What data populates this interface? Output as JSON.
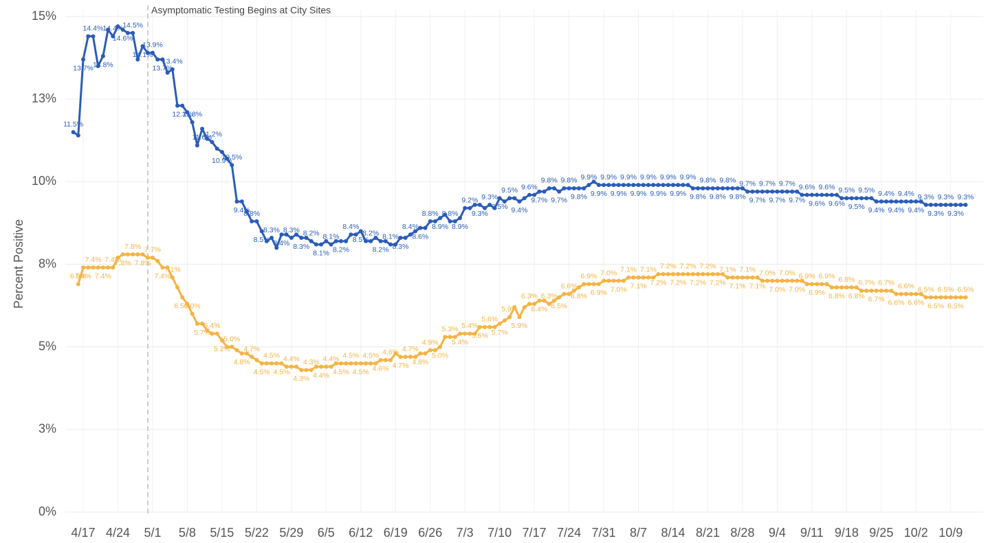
{
  "chart_data": {
    "type": "line",
    "annotation": "Asymptomatic Testing Begins at City Sites",
    "ylabel": "Percent Positive",
    "ylim": [
      0,
      15
    ],
    "yticks": [
      {
        "value": 0,
        "label": "0%"
      },
      {
        "value": 2.5,
        "label": "3%"
      },
      {
        "value": 5,
        "label": "5%"
      },
      {
        "value": 7.5,
        "label": "8%"
      },
      {
        "value": 10,
        "label": "10%"
      },
      {
        "value": 12.5,
        "label": "13%"
      },
      {
        "value": 15,
        "label": "15%"
      }
    ],
    "grid": true,
    "categories": [
      null,
      null,
      "4/17",
      null,
      null,
      null,
      null,
      null,
      null,
      "4/24",
      null,
      null,
      null,
      null,
      null,
      null,
      "5/1",
      null,
      null,
      null,
      null,
      null,
      null,
      "5/8",
      null,
      null,
      null,
      null,
      null,
      null,
      "5/15",
      null,
      null,
      null,
      null,
      null,
      null,
      "5/22",
      null,
      null,
      null,
      null,
      null,
      null,
      "5/29",
      null,
      null,
      null,
      null,
      null,
      null,
      "6/5",
      null,
      null,
      null,
      null,
      null,
      null,
      "6/12",
      null,
      null,
      null,
      null,
      null,
      null,
      "6/19",
      null,
      null,
      null,
      null,
      null,
      null,
      "6/26",
      null,
      null,
      null,
      null,
      null,
      null,
      "7/3",
      null,
      null,
      null,
      null,
      null,
      null,
      "7/10",
      null,
      null,
      null,
      null,
      null,
      null,
      "7/17",
      null,
      null,
      null,
      null,
      null,
      null,
      "7/24",
      null,
      null,
      null,
      null,
      null,
      null,
      "7/31",
      null,
      null,
      null,
      null,
      null,
      null,
      "8/7",
      null,
      null,
      null,
      null,
      null,
      null,
      "8/14",
      null,
      null,
      null,
      null,
      null,
      null,
      "8/21",
      null,
      null,
      null,
      null,
      null,
      null,
      "8/28",
      null,
      null,
      null,
      null,
      null,
      null,
      "9/4",
      null,
      null,
      null,
      null,
      null,
      null,
      "9/11",
      null,
      null,
      null,
      null,
      null,
      null,
      "9/18",
      null,
      null,
      null,
      null,
      null,
      null,
      "9/25",
      null,
      null,
      null,
      null,
      null,
      null,
      "10/2",
      null,
      null,
      null,
      null,
      null,
      null,
      "10/9",
      null,
      null,
      null
    ],
    "series": [
      {
        "color": "#2a5cb8",
        "values": [
          11.5,
          11.4,
          13.7,
          14.4,
          14.4,
          13.5,
          13.8,
          14.6,
          14.4,
          14.7,
          14.6,
          14.5,
          14.5,
          13.7,
          14.1,
          13.9,
          13.9,
          13.7,
          13.7,
          13.3,
          13.4,
          12.3,
          12.3,
          12.1,
          11.8,
          11.1,
          11.6,
          11.3,
          11.2,
          11.0,
          10.9,
          10.7,
          10.5,
          9.4,
          9.4,
          9.1,
          8.8,
          8.8,
          8.5,
          8.2,
          8.3,
          8.0,
          8.4,
          8.4,
          8.3,
          8.4,
          8.3,
          8.3,
          8.2,
          8.1,
          8.1,
          8.2,
          8.1,
          8.2,
          8.2,
          8.2,
          8.4,
          8.4,
          8.5,
          8.2,
          8.2,
          8.3,
          8.2,
          8.2,
          8.1,
          8.1,
          8.3,
          8.3,
          8.4,
          8.5,
          8.6,
          8.6,
          8.8,
          8.8,
          8.9,
          9.0,
          8.8,
          8.8,
          8.9,
          9.2,
          9.2,
          9.3,
          9.3,
          9.2,
          9.3,
          9.2,
          9.5,
          9.4,
          9.5,
          9.5,
          9.4,
          9.5,
          9.6,
          9.6,
          9.7,
          9.7,
          9.8,
          9.8,
          9.7,
          9.8,
          9.8,
          9.8,
          9.8,
          9.8,
          9.9,
          10.0,
          9.9,
          9.9,
          9.9,
          9.9,
          9.9,
          9.9,
          9.9,
          9.9,
          9.9,
          9.9,
          9.9,
          9.9,
          9.9,
          9.9,
          9.9,
          9.9,
          9.9,
          9.9,
          9.9,
          9.8,
          9.8,
          9.8,
          9.8,
          9.8,
          9.8,
          9.8,
          9.8,
          9.8,
          9.8,
          9.8,
          9.7,
          9.7,
          9.7,
          9.7,
          9.7,
          9.7,
          9.7,
          9.7,
          9.7,
          9.7,
          9.7,
          9.6,
          9.6,
          9.6,
          9.6,
          9.6,
          9.6,
          9.6,
          9.6,
          9.5,
          9.5,
          9.5,
          9.5,
          9.5,
          9.5,
          9.5,
          9.4,
          9.4,
          9.4,
          9.4,
          9.4,
          9.4,
          9.4,
          9.4,
          9.4,
          9.4,
          9.3,
          9.3,
          9.3,
          9.3,
          9.3,
          9.3,
          9.3,
          9.3,
          9.3
        ],
        "value_labels": [
          "11.5%",
          null,
          "13.7%",
          null,
          "14.4%",
          null,
          "13.8%",
          null,
          "14.4%",
          null,
          "14.6%",
          null,
          "14.5%",
          null,
          "14.1%",
          null,
          "13.9%",
          null,
          "13.7%",
          null,
          "13.4%",
          null,
          "12.3%",
          null,
          "11.8%",
          null,
          "11.6%",
          null,
          "11.2%",
          null,
          "10.9%",
          null,
          "10.5%",
          null,
          "9.4%",
          null,
          "8.8%",
          null,
          "8.5%",
          null,
          "8.3%",
          null,
          "8.4%",
          null,
          "8.3%",
          null,
          "8.3%",
          null,
          "8.2%",
          null,
          "8.1%",
          null,
          "8.1%",
          null,
          "8.2%",
          null,
          "8.4%",
          null,
          "8.5%",
          null,
          "8.2%",
          null,
          "8.2%",
          null,
          "8.1%",
          null,
          "8.3%",
          null,
          "8.4%",
          null,
          "8.6%",
          null,
          "8.8%",
          null,
          "8.9%",
          null,
          "8.8%",
          null,
          "8.9%",
          null,
          "9.2%",
          null,
          "9.3%",
          null,
          "9.3%",
          null,
          "9.5%",
          null,
          "9.5%",
          null,
          "9.4%",
          null,
          "9.6%",
          null,
          "9.7%",
          null,
          "9.8%",
          null,
          "9.7%",
          null,
          "9.8%",
          null,
          "9.8%",
          null,
          "9.9%",
          null,
          "9.9%",
          null,
          "9.9%",
          null,
          "9.9%",
          null,
          "9.9%",
          null,
          "9.9%",
          null,
          "9.9%",
          null,
          "9.9%",
          null,
          "9.9%",
          null,
          "9.9%",
          null,
          "9.9%",
          null,
          "9.8%",
          null,
          "9.8%",
          null,
          "9.8%",
          null,
          "9.8%",
          null,
          "9.8%",
          null,
          "9.7%",
          null,
          "9.7%",
          null,
          "9.7%",
          null,
          "9.7%",
          null,
          "9.7%",
          null,
          "9.7%",
          null,
          "9.6%",
          null,
          "9.6%",
          null,
          "9.6%",
          null,
          "9.6%",
          null,
          "9.5%",
          null,
          "9.5%",
          null,
          "9.5%",
          null,
          "9.4%",
          null,
          "9.4%",
          null,
          "9.4%",
          null,
          "9.4%",
          null,
          "9.4%",
          null,
          "9.3%",
          null,
          "9.3%",
          null,
          "9.3%",
          null,
          "9.3%",
          null,
          "9.3%"
        ]
      },
      {
        "color": "#f5b342",
        "values": [
          null,
          6.9,
          7.4,
          7.4,
          7.4,
          7.4,
          7.4,
          7.4,
          7.4,
          7.7,
          7.8,
          7.8,
          7.8,
          7.8,
          7.8,
          7.7,
          7.7,
          7.6,
          7.4,
          7.4,
          7.1,
          6.8,
          6.5,
          6.3,
          6.0,
          5.7,
          5.7,
          5.5,
          5.4,
          5.4,
          5.2,
          5.0,
          5.0,
          4.9,
          4.8,
          4.8,
          4.7,
          4.6,
          4.5,
          4.5,
          4.5,
          4.5,
          4.5,
          4.4,
          4.4,
          4.4,
          4.3,
          4.3,
          4.3,
          4.4,
          4.4,
          4.4,
          4.4,
          4.5,
          4.5,
          4.5,
          4.5,
          4.5,
          4.5,
          4.5,
          4.5,
          4.5,
          4.6,
          4.6,
          4.6,
          4.8,
          4.7,
          4.7,
          4.7,
          4.7,
          4.8,
          4.8,
          4.9,
          4.9,
          5.0,
          5.3,
          5.3,
          5.3,
          5.4,
          5.4,
          5.4,
          5.4,
          5.6,
          5.6,
          5.6,
          5.6,
          5.7,
          5.8,
          5.9,
          6.2,
          5.9,
          6.2,
          6.3,
          6.3,
          6.4,
          6.4,
          6.3,
          6.4,
          6.5,
          6.6,
          6.6,
          6.7,
          6.8,
          6.9,
          6.9,
          6.9,
          6.9,
          7.0,
          7.0,
          7.0,
          7.0,
          7.0,
          7.1,
          7.1,
          7.1,
          7.1,
          7.1,
          7.1,
          7.2,
          7.2,
          7.2,
          7.2,
          7.2,
          7.2,
          7.2,
          7.2,
          7.2,
          7.2,
          7.2,
          7.2,
          7.2,
          7.2,
          7.1,
          7.1,
          7.1,
          7.1,
          7.1,
          7.1,
          7.1,
          7.0,
          7.0,
          7.0,
          7.0,
          7.0,
          7.0,
          7.0,
          7.0,
          7.0,
          6.9,
          6.9,
          6.9,
          6.9,
          6.9,
          6.8,
          6.8,
          6.8,
          6.8,
          6.8,
          6.8,
          6.7,
          6.7,
          6.7,
          6.7,
          6.7,
          6.7,
          6.7,
          6.6,
          6.6,
          6.6,
          6.6,
          6.6,
          6.6,
          6.5,
          6.5,
          6.5,
          6.5,
          6.5,
          6.5,
          6.5,
          6.5,
          6.5
        ],
        "value_labels": [
          null,
          "6.9%",
          "7.4%",
          null,
          "7.4%",
          null,
          "7.4%",
          null,
          "7.4%",
          null,
          "7.8%",
          null,
          "7.8%",
          null,
          "7.8%",
          null,
          "7.7%",
          null,
          "7.4%",
          null,
          "7.1%",
          null,
          "6.5%",
          null,
          "6.0%",
          null,
          "5.7%",
          null,
          "5.4%",
          null,
          "5.2%",
          null,
          "5.0%",
          null,
          "4.8%",
          null,
          "4.7%",
          null,
          "4.5%",
          null,
          "4.5%",
          null,
          "4.5%",
          null,
          "4.4%",
          null,
          "4.3%",
          null,
          "4.3%",
          null,
          "4.4%",
          null,
          "4.4%",
          null,
          "4.5%",
          null,
          "4.5%",
          null,
          "4.5%",
          null,
          "4.5%",
          null,
          "4.6%",
          null,
          "4.6%",
          null,
          "4.7%",
          null,
          "4.7%",
          null,
          "4.8%",
          null,
          "4.9%",
          null,
          "5.0%",
          null,
          "5.3%",
          null,
          "5.4%",
          null,
          "5.4%",
          null,
          "5.6%",
          null,
          "5.6%",
          null,
          "5.7%",
          null,
          "5.9%",
          null,
          "5.9%",
          null,
          "6.3%",
          null,
          "6.4%",
          null,
          "6.3%",
          null,
          "6.5%",
          null,
          "6.6%",
          null,
          "6.8%",
          null,
          "6.9%",
          null,
          "6.9%",
          null,
          "7.0%",
          null,
          "7.0%",
          null,
          "7.1%",
          null,
          "7.1%",
          null,
          "7.1%",
          null,
          "7.2%",
          null,
          "7.2%",
          null,
          "7.2%",
          null,
          "7.2%",
          null,
          "7.2%",
          null,
          "7.2%",
          null,
          "7.2%",
          null,
          "7.1%",
          null,
          "7.1%",
          null,
          "7.1%",
          null,
          "7.1%",
          null,
          "7.0%",
          null,
          "7.0%",
          null,
          "7.0%",
          null,
          "7.0%",
          null,
          "6.9%",
          null,
          "6.9%",
          null,
          "6.9%",
          null,
          "6.8%",
          null,
          "6.8%",
          null,
          "6.8%",
          null,
          "6.7%",
          null,
          "6.7%",
          null,
          "6.7%",
          null,
          "6.6%",
          null,
          "6.6%",
          null,
          "6.6%",
          null,
          "6.5%",
          null,
          "6.5%",
          null,
          "6.5%",
          null,
          "6.5%",
          null,
          "6.5%"
        ]
      }
    ]
  }
}
